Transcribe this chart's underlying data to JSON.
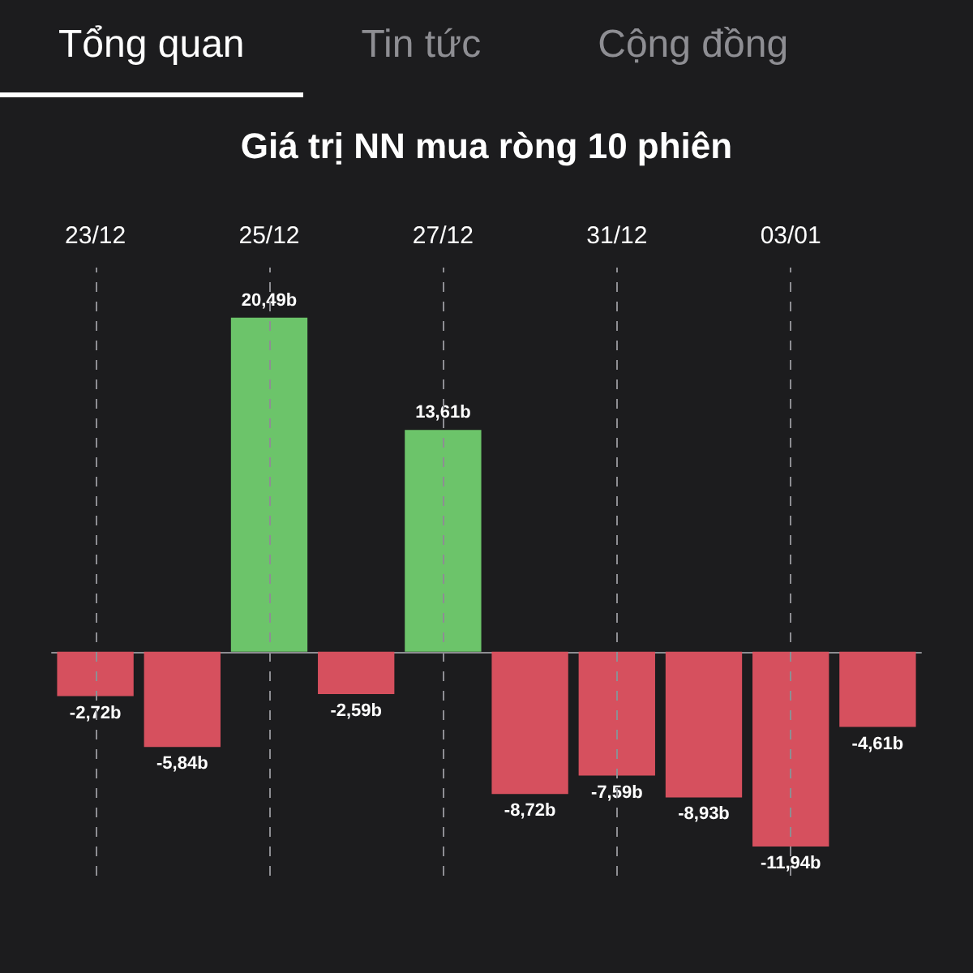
{
  "chart_data": {
    "type": "bar",
    "title": "Giá trị NN mua ròng 10 phiên",
    "annotations": [
      "Tổng quan",
      "Tin tức",
      "Cộng đồng"
    ],
    "categories": [
      "23/12",
      null,
      "25/12",
      null,
      "27/12",
      null,
      "31/12",
      null,
      "03/01",
      null
    ],
    "values": [
      -2.72,
      -5.84,
      20.49,
      -2.59,
      13.61,
      -8.72,
      -7.59,
      -8.93,
      -11.94,
      -4.61
    ],
    "value_labels": [
      "-2,72b",
      "-5,84b",
      "20,49b",
      "-2,59b",
      "13,61b",
      "-8,72b",
      "-7,59b",
      "-8,93b",
      "-11,94b",
      "-4,61b"
    ],
    "colors": [
      "#d6505e",
      "#d6505e",
      "#6cc46a",
      "#d6505e",
      "#6cc46a",
      "#d6505e",
      "#d6505e",
      "#d6505e",
      "#d6505e",
      "#d6505e"
    ],
    "grid": "x"
  }
}
